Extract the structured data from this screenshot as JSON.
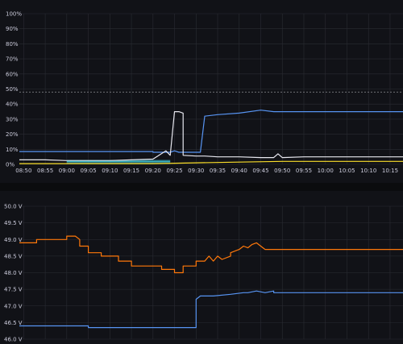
{
  "chart_data": [
    {
      "type": "line",
      "ylim": [
        0,
        100
      ],
      "grid": true,
      "yticks": [
        "0%",
        "10%",
        "20%",
        "30%",
        "40%",
        "50%",
        "60%",
        "70%",
        "80%",
        "90%",
        "100%"
      ],
      "threshold": 48,
      "xticks": [
        "08:50",
        "08:55",
        "09:00",
        "09:05",
        "09:10",
        "09:15",
        "09:20",
        "09:25",
        "09:30",
        "09:35",
        "09:40",
        "09:45",
        "09:50",
        "09:55",
        "10:00",
        "10:05",
        "10:10",
        "10:15"
      ],
      "xlim": [
        "08:49",
        "10:18"
      ],
      "series": [
        {
          "color": "#5794f2",
          "x": [
            "08:49",
            "09:20",
            "09:20",
            "09:24",
            "09:25",
            "09:26",
            "09:31",
            "09:32",
            "09:35",
            "09:40",
            "09:45",
            "09:48",
            "10:18"
          ],
          "y": [
            8.5,
            8.5,
            8,
            8,
            9,
            8,
            8,
            32,
            33,
            34,
            36,
            35,
            35
          ]
        },
        {
          "color": "#e8e8f0",
          "x": [
            "08:49",
            "08:55",
            "09:00",
            "09:05",
            "09:10",
            "09:15",
            "09:20",
            "09:23",
            "09:24",
            "09:25",
            "09:26",
            "09:27",
            "09:27",
            "09:30",
            "09:32",
            "09:35",
            "09:40",
            "09:45",
            "09:48",
            "09:49",
            "09:50",
            "09:55",
            "10:00",
            "10:05",
            "10:10",
            "10:18"
          ],
          "y": [
            3,
            3,
            2.5,
            2.5,
            2.5,
            3,
            3.5,
            9,
            6,
            35,
            35,
            34,
            6,
            5.5,
            5.5,
            5,
            5,
            4.5,
            4.5,
            7,
            4.5,
            5,
            5,
            5,
            5,
            5
          ]
        },
        {
          "color": "#fade2a",
          "x": [
            "08:49",
            "09:20",
            "09:30",
            "09:40",
            "09:50",
            "10:00",
            "10:18"
          ],
          "y": [
            0.5,
            0.5,
            1,
            1.5,
            2,
            2,
            2
          ]
        },
        {
          "color": "#3fbccb",
          "x": [
            "09:00",
            "09:05",
            "09:10",
            "09:15",
            "09:20",
            "09:24"
          ],
          "y": [
            2,
            2,
            2,
            2,
            2,
            2
          ]
        }
      ]
    },
    {
      "type": "line",
      "ylim": [
        46,
        50
      ],
      "grid": true,
      "yticks": [
        "46.0 V",
        "46.5 V",
        "47.0 V",
        "47.5 V",
        "48.0 V",
        "48.5 V",
        "49.0 V",
        "49.5 V",
        "50.0 V"
      ],
      "xlim": [
        "08:49",
        "10:18"
      ],
      "series": [
        {
          "color": "#ff780a",
          "x": [
            "08:49",
            "08:53",
            "08:53",
            "09:00",
            "09:00",
            "09:02",
            "09:03",
            "09:03",
            "09:05",
            "09:05",
            "09:08",
            "09:08",
            "09:12",
            "09:12",
            "09:15",
            "09:15",
            "09:22",
            "09:22",
            "09:25",
            "09:25",
            "09:27",
            "09:27",
            "09:30",
            "09:30",
            "09:32",
            "09:33",
            "09:34",
            "09:35",
            "09:36",
            "09:38",
            "09:38",
            "09:40",
            "09:41",
            "09:42",
            "09:43",
            "09:44",
            "09:45",
            "09:46",
            "10:18"
          ],
          "y": [
            48.9,
            48.9,
            49.0,
            49.0,
            49.1,
            49.1,
            49.0,
            48.8,
            48.8,
            48.6,
            48.6,
            48.5,
            48.5,
            48.35,
            48.35,
            48.2,
            48.2,
            48.1,
            48.1,
            48.0,
            48.0,
            48.2,
            48.2,
            48.35,
            48.35,
            48.5,
            48.35,
            48.5,
            48.4,
            48.5,
            48.6,
            48.7,
            48.8,
            48.75,
            48.85,
            48.9,
            48.8,
            48.7,
            48.7
          ]
        },
        {
          "color": "#5794f2",
          "x": [
            "08:49",
            "09:05",
            "09:05",
            "09:30",
            "09:30",
            "09:31",
            "09:34",
            "09:38",
            "09:41",
            "09:42",
            "09:44",
            "09:46",
            "09:48",
            "09:48",
            "10:18"
          ],
          "y": [
            46.4,
            46.4,
            46.35,
            46.35,
            47.2,
            47.3,
            47.3,
            47.35,
            47.4,
            47.4,
            47.45,
            47.4,
            47.45,
            47.4,
            47.4
          ]
        }
      ]
    }
  ]
}
